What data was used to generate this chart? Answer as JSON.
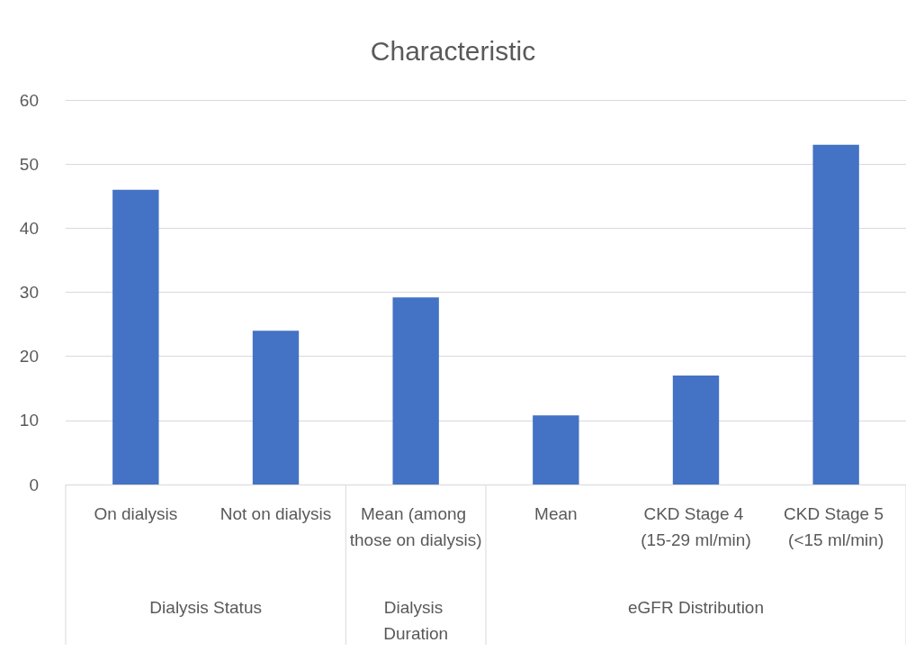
{
  "chart_data": {
    "type": "bar",
    "title": "Characteristic",
    "categories": [
      "On dialysis",
      "Not on dialysis",
      "Mean (among those on dialysis)",
      "Mean",
      "CKD Stage 4 (15-29 ml/min)",
      "CKD Stage 5 (<15 ml/min)"
    ],
    "values": [
      46,
      24,
      29.2,
      10.8,
      17,
      53
    ],
    "color": "#4472c4",
    "ylim": [
      0,
      60
    ],
    "yticks": [
      0,
      10,
      20,
      30,
      40,
      50,
      60
    ],
    "grid": "y",
    "annotations": [
      "Dialysis Status",
      "Dialysis Duration",
      "eGFR Distribution"
    ]
  }
}
